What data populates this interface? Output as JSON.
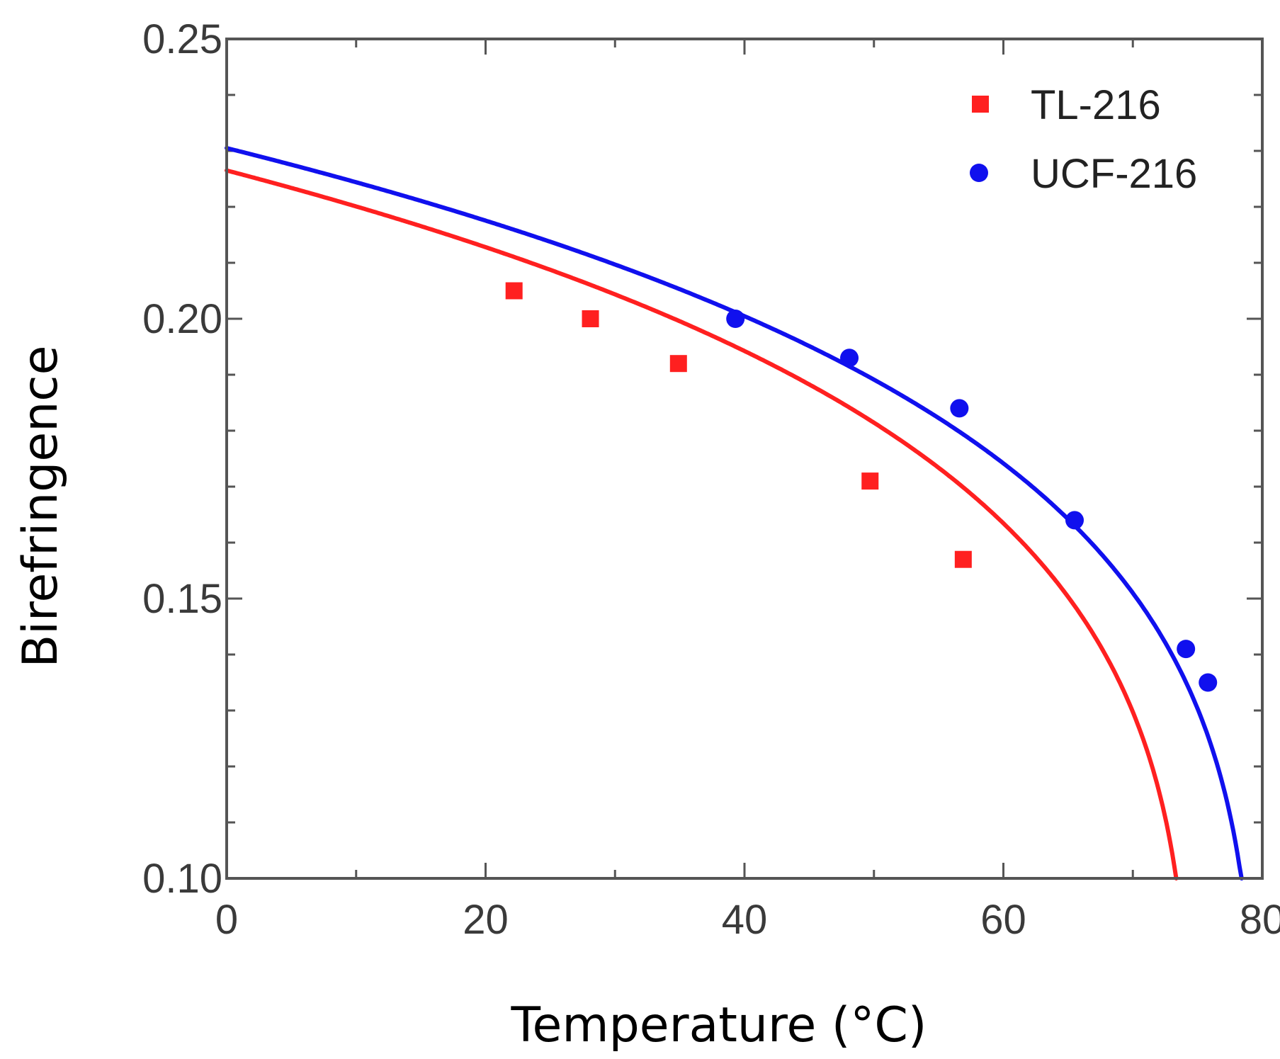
{
  "chart_data": {
    "type": "scatter",
    "title": "",
    "xlabel": "Temperature (°C)",
    "ylabel": "Birefringence",
    "xlim": [
      0,
      80
    ],
    "ylim": [
      0.1,
      0.25
    ],
    "x_ticks": [
      0,
      20,
      40,
      60,
      80
    ],
    "x_tick_labels": [
      "0",
      "20",
      "40",
      "60",
      "80"
    ],
    "y_ticks": [
      0.1,
      0.15,
      0.2,
      0.25
    ],
    "y_tick_labels": [
      "0.10",
      "0.15",
      "0.20",
      "0.25"
    ],
    "x_minor_step": 10,
    "y_minor_step": 0.01,
    "grid": false,
    "legend_position": "top-right",
    "series": [
      {
        "name": "TL-216",
        "color": "#ff2020",
        "marker": "square",
        "x": [
          22.2,
          28.1,
          34.9,
          49.7,
          56.9
        ],
        "y": [
          0.205,
          0.2,
          0.192,
          0.171,
          0.157
        ],
        "fit": {
          "type": "haller",
          "T0": 75.0,
          "TN": 74.6,
          "x0": 0.2265,
          "beta": 0.2
        }
      },
      {
        "name": "UCF-216",
        "color": "#1010ee",
        "marker": "circle",
        "x": [
          39.3,
          48.1,
          56.6,
          65.5,
          74.1,
          75.8
        ],
        "y": [
          0.2,
          0.193,
          0.184,
          0.164,
          0.141,
          0.135
        ],
        "fit": {
          "type": "haller",
          "T0": 80.0,
          "TN": 79.6,
          "x0": 0.2305,
          "beta": 0.2
        }
      }
    ]
  }
}
